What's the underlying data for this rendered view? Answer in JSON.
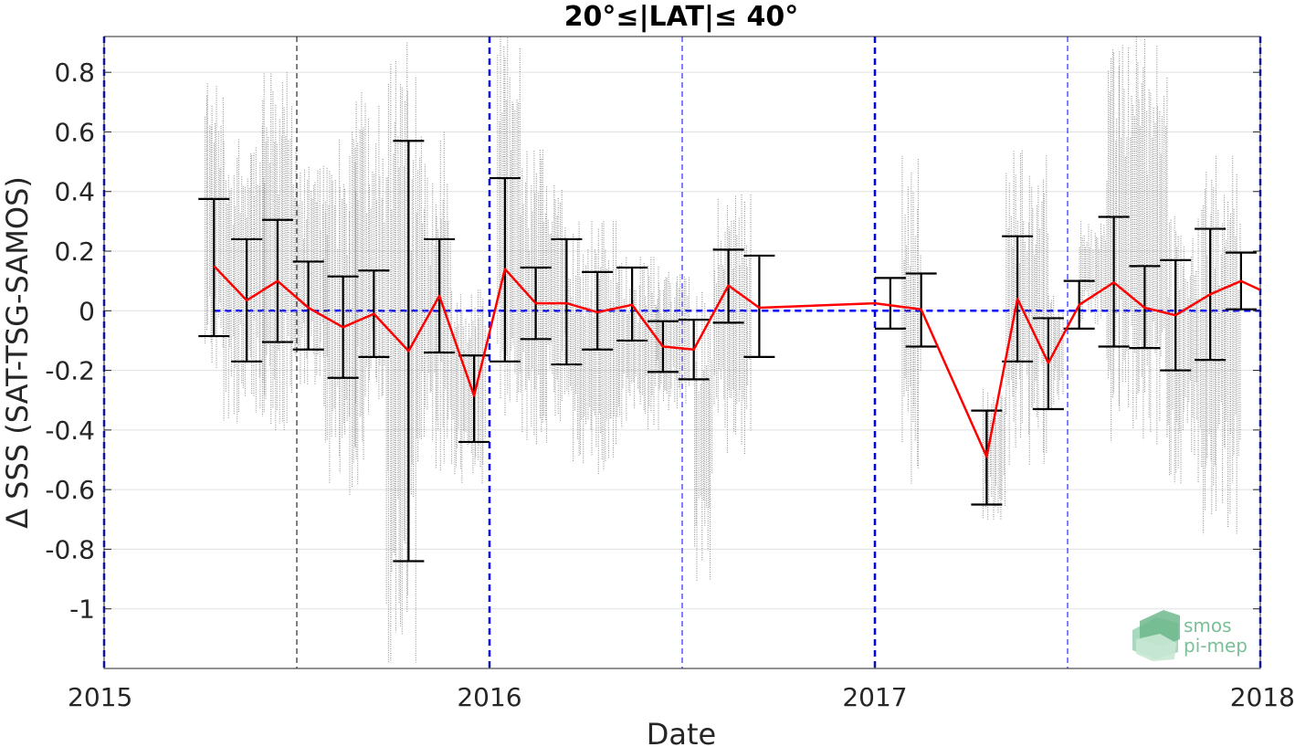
{
  "chart_data": {
    "type": "scatter",
    "title": "20°≤|LAT|≤ 40°",
    "xlabel": "Date",
    "ylabel": "Δ SSS (SAT-TSG-SAMOS)",
    "x_tick_labels": [
      "2015",
      "2016",
      "2017",
      "2018"
    ],
    "y_tick_labels": [
      "0.8",
      "0.6",
      "0.4",
      "0.2",
      "0",
      "-0.2",
      "-0.4",
      "-0.6",
      "-0.8",
      "-1"
    ],
    "y_ticks": [
      0.8,
      0.6,
      0.4,
      0.2,
      0,
      -0.2,
      -0.4,
      -0.6,
      -0.8,
      -1
    ],
    "xlim": [
      2015.0,
      2018.0
    ],
    "ylim": [
      -1.2,
      0.92
    ],
    "grid": true,
    "year_lines": [
      2015.0,
      2016.0,
      2017.0,
      2018.0
    ],
    "half_year_lines": [
      2015.5,
      2016.5,
      2017.5
    ],
    "zero_line": 0,
    "colors": {
      "scatter": "#808080",
      "mean_line": "#ff0000",
      "error_bars": "#000000",
      "reference_lines": "#0000ff",
      "grid": "#e0e0e0"
    },
    "scatter_clusters": [
      {
        "x": [
          2015.26,
          2015.31
        ],
        "y": [
          -0.2,
          0.8
        ]
      },
      {
        "x": [
          2015.31,
          2015.42
        ],
        "y": [
          -0.4,
          0.62
        ]
      },
      {
        "x": [
          2015.41,
          2015.5
        ],
        "y": [
          -0.4,
          0.8
        ]
      },
      {
        "x": [
          2015.5,
          2015.58
        ],
        "y": [
          -0.25,
          0.5
        ]
      },
      {
        "x": [
          2015.57,
          2015.66
        ],
        "y": [
          -0.62,
          0.6
        ]
      },
      {
        "x": [
          2015.65,
          2015.73
        ],
        "y": [
          -0.5,
          0.77
        ]
      },
      {
        "x": [
          2015.73,
          2015.81
        ],
        "y": [
          -1.18,
          0.9
        ]
      },
      {
        "x": [
          2015.81,
          2015.9
        ],
        "y": [
          -0.6,
          0.6
        ]
      },
      {
        "x": [
          2015.9,
          2015.99
        ],
        "y": [
          -0.58,
          0.07
        ]
      },
      {
        "x": [
          2016.02,
          2016.08
        ],
        "y": [
          -0.35,
          0.92
        ]
      },
      {
        "x": [
          2016.08,
          2016.2
        ],
        "y": [
          -0.45,
          0.54
        ]
      },
      {
        "x": [
          2016.2,
          2016.33
        ],
        "y": [
          -0.55,
          0.3
        ]
      },
      {
        "x": [
          2016.33,
          2016.44
        ],
        "y": [
          -0.4,
          0.18
        ]
      },
      {
        "x": [
          2016.43,
          2016.52
        ],
        "y": [
          -0.34,
          0.15
        ]
      },
      {
        "x": [
          2016.53,
          2016.58
        ],
        "y": [
          -0.92,
          0.1
        ]
      },
      {
        "x": [
          2016.58,
          2016.68
        ],
        "y": [
          -0.48,
          0.39
        ]
      },
      {
        "x": [
          2017.07,
          2017.12
        ],
        "y": [
          -0.58,
          0.52
        ]
      },
      {
        "x": [
          2017.28,
          2017.34
        ],
        "y": [
          -0.7,
          -0.25
        ]
      },
      {
        "x": [
          2017.34,
          2017.45
        ],
        "y": [
          -0.52,
          0.55
        ]
      },
      {
        "x": [
          2017.45,
          2017.49
        ],
        "y": [
          -0.33,
          0.05
        ]
      },
      {
        "x": [
          2017.53,
          2017.6
        ],
        "y": [
          -0.05,
          0.3
        ]
      },
      {
        "x": [
          2017.6,
          2017.76
        ],
        "y": [
          -0.45,
          0.92
        ]
      },
      {
        "x": [
          2017.76,
          2017.85
        ],
        "y": [
          -0.58,
          0.35
        ]
      },
      {
        "x": [
          2017.85,
          2017.95
        ],
        "y": [
          -0.75,
          0.52
        ]
      }
    ],
    "series": [
      {
        "type": "line",
        "x": [
          2015.285,
          2015.37,
          2015.45,
          2015.53,
          2015.62,
          2015.7,
          2015.79,
          2015.87,
          2015.96,
          2016.04,
          2016.12,
          2016.2,
          2016.28,
          2016.37,
          2016.45,
          2016.53,
          2016.62,
          2016.7,
          2017.0,
          2017.12,
          2017.29,
          2017.37,
          2017.45,
          2017.53,
          2017.62,
          2017.7,
          2017.78,
          2017.87,
          2017.95,
          2018.0
        ],
        "y": [
          0.15,
          0.035,
          0.1,
          0.01,
          -0.055,
          -0.01,
          -0.135,
          0.05,
          -0.285,
          0.14,
          0.025,
          0.025,
          -0.005,
          0.02,
          -0.12,
          -0.13,
          0.085,
          0.01,
          0.025,
          0.005,
          -0.49,
          0.04,
          -0.175,
          0.02,
          0.095,
          0.01,
          -0.015,
          0.055,
          0.1,
          0.07
        ]
      }
    ],
    "error_bars": [
      {
        "x": 2015.285,
        "lower": -0.085,
        "upper": 0.375
      },
      {
        "x": 2015.37,
        "lower": -0.17,
        "upper": 0.24
      },
      {
        "x": 2015.45,
        "lower": -0.105,
        "upper": 0.305
      },
      {
        "x": 2015.53,
        "lower": -0.13,
        "upper": 0.165
      },
      {
        "x": 2015.62,
        "lower": -0.225,
        "upper": 0.115
      },
      {
        "x": 2015.7,
        "lower": -0.155,
        "upper": 0.135
      },
      {
        "x": 2015.79,
        "lower": -0.84,
        "upper": 0.57
      },
      {
        "x": 2015.87,
        "lower": -0.14,
        "upper": 0.24
      },
      {
        "x": 2015.96,
        "lower": -0.44,
        "upper": -0.15
      },
      {
        "x": 2016.04,
        "lower": -0.17,
        "upper": 0.445
      },
      {
        "x": 2016.12,
        "lower": -0.095,
        "upper": 0.145
      },
      {
        "x": 2016.2,
        "lower": -0.18,
        "upper": 0.24
      },
      {
        "x": 2016.28,
        "lower": -0.13,
        "upper": 0.13
      },
      {
        "x": 2016.37,
        "lower": -0.1,
        "upper": 0.145
      },
      {
        "x": 2016.45,
        "lower": -0.205,
        "upper": -0.035
      },
      {
        "x": 2016.53,
        "lower": -0.23,
        "upper": -0.03
      },
      {
        "x": 2016.62,
        "lower": -0.04,
        "upper": 0.205
      },
      {
        "x": 2016.7,
        "lower": -0.155,
        "upper": 0.185
      },
      {
        "x": 2017.04,
        "lower": -0.06,
        "upper": 0.11
      },
      {
        "x": 2017.12,
        "lower": -0.12,
        "upper": 0.125
      },
      {
        "x": 2017.29,
        "lower": -0.65,
        "upper": -0.335
      },
      {
        "x": 2017.37,
        "lower": -0.17,
        "upper": 0.25
      },
      {
        "x": 2017.45,
        "lower": -0.33,
        "upper": -0.025
      },
      {
        "x": 2017.53,
        "lower": -0.06,
        "upper": 0.1
      },
      {
        "x": 2017.62,
        "lower": -0.12,
        "upper": 0.315
      },
      {
        "x": 2017.7,
        "lower": -0.125,
        "upper": 0.15
      },
      {
        "x": 2017.78,
        "lower": -0.2,
        "upper": 0.17
      },
      {
        "x": 2017.87,
        "lower": -0.165,
        "upper": 0.275
      },
      {
        "x": 2017.95,
        "lower": 0.005,
        "upper": 0.195
      }
    ]
  },
  "logo": {
    "line1": "smos",
    "line2": "pi-mep",
    "color": "#7bbf97"
  }
}
